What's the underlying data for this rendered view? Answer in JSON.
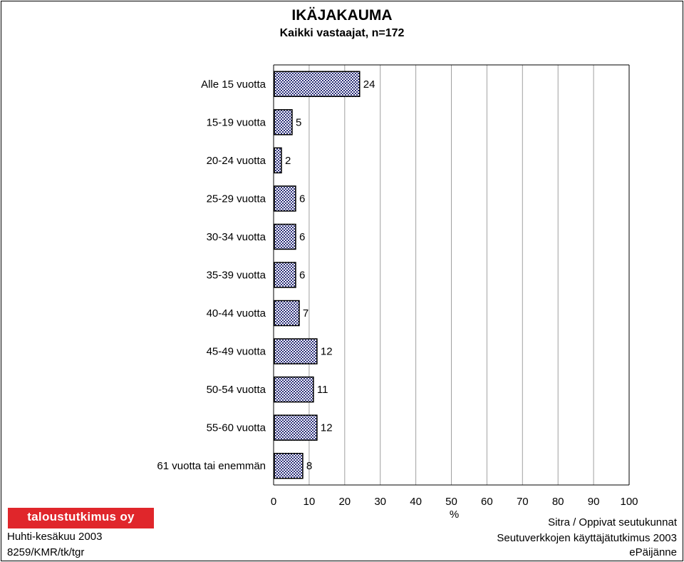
{
  "chart_data": {
    "type": "bar",
    "orientation": "horizontal",
    "title": "IKÄJAKAUMA",
    "subtitle": "Kaikki vastaajat, n=172",
    "categories": [
      "Alle 15 vuotta",
      "15-19 vuotta",
      "20-24 vuotta",
      "25-29 vuotta",
      "30-34 vuotta",
      "35-39 vuotta",
      "40-44 vuotta",
      "45-49 vuotta",
      "50-54 vuotta",
      "55-60 vuotta",
      "61 vuotta tai enemmän"
    ],
    "values": [
      24,
      5,
      2,
      6,
      6,
      6,
      7,
      12,
      11,
      12,
      8
    ],
    "xlabel": "%",
    "xlim": [
      0,
      100
    ],
    "xticks": [
      "0",
      "10",
      "20",
      "30",
      "40",
      "50",
      "60",
      "70",
      "80",
      "90",
      "100"
    ],
    "grid": true,
    "bar_color": "#2b2f7a"
  },
  "logo": {
    "text": "taloustutkimus oy",
    "color": "#e0262b"
  },
  "footer": {
    "left": [
      "Huhti-kesäkuu 2003",
      "8259/KMR/tk/tgr"
    ],
    "right": [
      "Sitra / Oppivat seutukunnat",
      "Seutuverkkojen käyttäjätutkimus 2003",
      "ePäijänne"
    ]
  }
}
